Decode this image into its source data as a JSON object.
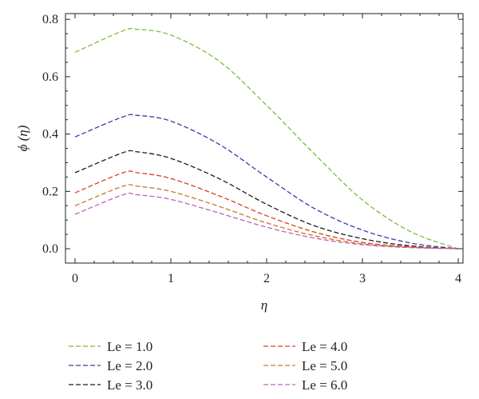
{
  "chart_data": {
    "type": "line",
    "xlabel": "η",
    "ylabel": "ϕ (η)",
    "xlim": [
      -0.1,
      4.05
    ],
    "ylim": [
      -0.05,
      0.82
    ],
    "x_ticks": [
      "0",
      "1",
      "2",
      "3",
      "4"
    ],
    "y_ticks": [
      "0.0",
      "0.2",
      "0.4",
      "0.6",
      "0.8"
    ],
    "grid": false,
    "legend_position": "bottom",
    "line_style": "dashed",
    "x": [
      0,
      0.5,
      0.65,
      1.0,
      1.5,
      2.0,
      2.5,
      3.0,
      3.5,
      4.0
    ],
    "series": [
      {
        "name": "Le = 1.0",
        "color": "#7dbb3a",
        "values": [
          0.685,
          0.76,
          0.765,
          0.745,
          0.655,
          0.5,
          0.33,
          0.17,
          0.06,
          0.0
        ]
      },
      {
        "name": "Le = 2.0",
        "color": "#3a3aa8",
        "values": [
          0.39,
          0.46,
          0.465,
          0.445,
          0.365,
          0.25,
          0.14,
          0.065,
          0.02,
          0.0
        ]
      },
      {
        "name": "Le = 3.0",
        "color": "#1a1a1a",
        "values": [
          0.265,
          0.335,
          0.338,
          0.315,
          0.245,
          0.155,
          0.08,
          0.035,
          0.01,
          0.0
        ]
      },
      {
        "name": "Le = 4.0",
        "color": "#d9401e",
        "values": [
          0.195,
          0.265,
          0.265,
          0.245,
          0.185,
          0.115,
          0.058,
          0.022,
          0.007,
          0.0
        ]
      },
      {
        "name": "Le = 5.0",
        "color": "#c8772c",
        "values": [
          0.15,
          0.218,
          0.218,
          0.2,
          0.148,
          0.09,
          0.045,
          0.017,
          0.005,
          0.0
        ]
      },
      {
        "name": "Le = 6.0",
        "color": "#c060b8",
        "values": [
          0.12,
          0.188,
          0.188,
          0.172,
          0.125,
          0.075,
          0.037,
          0.014,
          0.004,
          0.0
        ]
      }
    ]
  }
}
